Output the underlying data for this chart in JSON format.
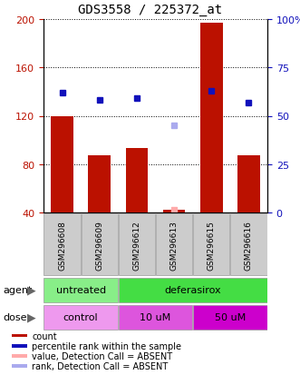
{
  "title": "GDS3558 / 225372_at",
  "samples": [
    "GSM296608",
    "GSM296609",
    "GSM296612",
    "GSM296613",
    "GSM296615",
    "GSM296616"
  ],
  "bar_values": [
    120,
    87,
    93,
    42,
    197,
    87
  ],
  "percentile_right": [
    62,
    58,
    59,
    null,
    63,
    57
  ],
  "absent_value_left": [
    null,
    null,
    null,
    42,
    null,
    null
  ],
  "absent_rank_right": [
    null,
    null,
    null,
    45,
    null,
    null
  ],
  "ylim_left": [
    40,
    200
  ],
  "ylim_right": [
    0,
    100
  ],
  "yticks_left": [
    40,
    80,
    120,
    160,
    200
  ],
  "yticks_right": [
    0,
    25,
    50,
    75,
    100
  ],
  "yticklabels_right": [
    "0",
    "25",
    "50",
    "75",
    "100%"
  ],
  "bar_color": "#BB1100",
  "percentile_color": "#1111BB",
  "absent_value_color": "#FFAAAA",
  "absent_rank_color": "#AAAAEE",
  "agent_groups": [
    {
      "label": "untreated",
      "start": 0,
      "end": 2,
      "color": "#88EE88"
    },
    {
      "label": "deferasirox",
      "start": 2,
      "end": 6,
      "color": "#44DD44"
    }
  ],
  "dose_groups": [
    {
      "label": "control",
      "start": 0,
      "end": 2,
      "color": "#EE99EE"
    },
    {
      "label": "10 uM",
      "start": 2,
      "end": 4,
      "color": "#DD55DD"
    },
    {
      "label": "50 uM",
      "start": 4,
      "end": 6,
      "color": "#CC00CC"
    }
  ],
  "legend_items": [
    {
      "label": "count",
      "color": "#BB1100"
    },
    {
      "label": "percentile rank within the sample",
      "color": "#1111BB"
    },
    {
      "label": "value, Detection Call = ABSENT",
      "color": "#FFAAAA"
    },
    {
      "label": "rank, Detection Call = ABSENT",
      "color": "#AAAAEE"
    }
  ],
  "left_tick_color": "#BB1100",
  "right_tick_color": "#1111BB",
  "sample_bg_color": "#CCCCCC",
  "background_color": "#FFFFFF"
}
